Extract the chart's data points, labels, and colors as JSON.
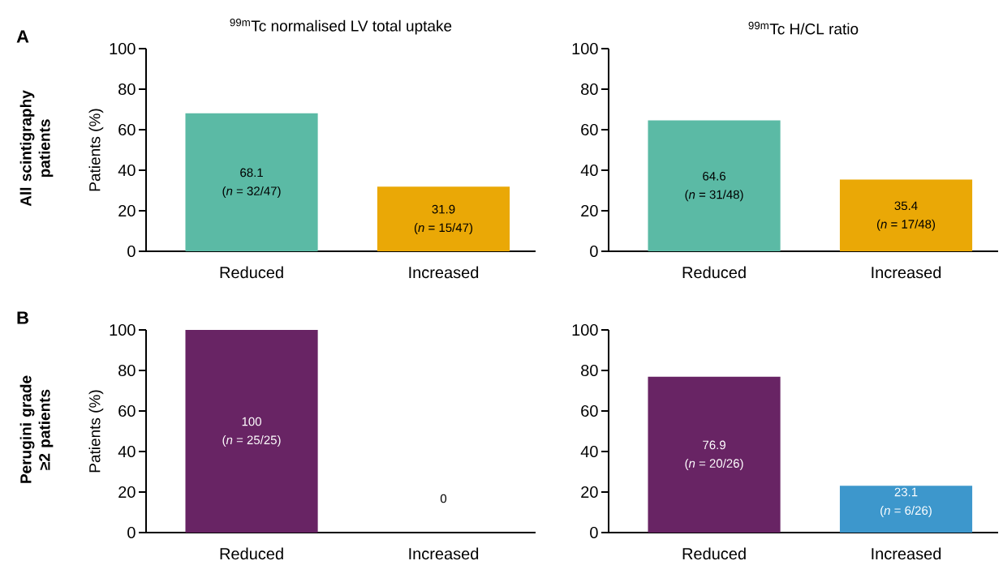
{
  "chart_data": [
    {
      "type": "bar",
      "title": "$^{99m}$Tc normalised LV total uptake",
      "ylabel": "Patients (%)",
      "categories": [
        "Reduced",
        "Increased"
      ],
      "values": [
        68.1,
        31.9
      ],
      "colors": [
        "#5bbaa5",
        "#eaa806"
      ],
      "ylim": [
        0,
        100
      ],
      "yticks": [
        0,
        20,
        40,
        60,
        80,
        100
      ],
      "value_labels": [
        "68.1",
        "31.9"
      ],
      "annotations": [
        "A",
        "All scintigraphy patients",
        "(*n* = 32/47)",
        "(*n* = 15/47)"
      ]
    },
    {
      "type": "bar",
      "title": "$^{99m}$Tc H/CL ratio",
      "categories": [
        "Reduced",
        "Increased"
      ],
      "values": [
        64.6,
        35.4
      ],
      "colors": [
        "#5bbaa5",
        "#eaa806"
      ],
      "ylim": [
        0,
        100
      ],
      "yticks": [
        0,
        20,
        40,
        60,
        80,
        100
      ],
      "value_labels": [
        "64.6",
        "35.4"
      ],
      "annotations": [
        "(*n* = 31/48)",
        "(*n* = 17/48)"
      ]
    },
    {
      "type": "bar",
      "ylabel": "Patients (%)",
      "categories": [
        "Reduced",
        "Increased"
      ],
      "values": [
        100,
        0
      ],
      "colors": [
        "#682464",
        "#3d97cc"
      ],
      "ylim": [
        0,
        100
      ],
      "yticks": [
        0,
        20,
        40,
        60,
        80,
        100
      ],
      "value_labels": [
        "100",
        "0"
      ],
      "annotations": [
        "B",
        "Perugini grade ≥2 patients",
        "(*n* = 25/25)"
      ]
    },
    {
      "type": "bar",
      "categories": [
        "Reduced",
        "Increased"
      ],
      "values": [
        76.9,
        23.1
      ],
      "colors": [
        "#682464",
        "#3d97cc"
      ],
      "ylim": [
        0,
        100
      ],
      "yticks": [
        0,
        20,
        40,
        60,
        80,
        100
      ],
      "value_labels": [
        "76.9",
        "23.1"
      ],
      "annotations": [
        "(*n* = 20/26)",
        "(*n* = 6/26)"
      ]
    }
  ]
}
